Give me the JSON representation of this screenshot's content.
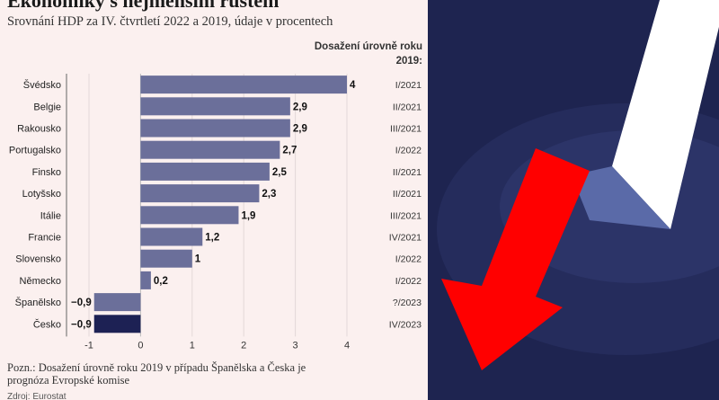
{
  "title": "Ekonomiky s nejmenším růstem",
  "subtitle": "Srovnání HDP za IV. čtvrtletí 2022 a 2019, údaje v procentech",
  "column_header": "Dosažení úrovně roku 2019:",
  "note": "Pozn.: Dosažení úrovně roku 2019 v případu Španělska a Česka je prognóza Evropské komise",
  "source": "Zdroj: Eurostat",
  "colors": {
    "bar": "#6b6f9a",
    "highlight": "#1d2154",
    "background": "#fbf0ef"
  },
  "chart_data": {
    "type": "bar",
    "orientation": "horizontal",
    "title": "Ekonomiky s nejmenším růstem",
    "subtitle": "Srovnání HDP za IV. čtvrtletí 2022 a 2019, údaje v procentech",
    "categories": [
      "Švédsko",
      "Belgie",
      "Rakousko",
      "Portugalsko",
      "Finsko",
      "Lotyšsko",
      "Itálie",
      "Francie",
      "Slovensko",
      "Německo",
      "Španělsko",
      "Česko"
    ],
    "values": [
      4,
      2.9,
      2.9,
      2.7,
      2.5,
      2.3,
      1.9,
      1.2,
      1,
      0.2,
      -0.9,
      -0.9
    ],
    "value_labels": [
      "4",
      "2,9",
      "2,9",
      "2,7",
      "2,5",
      "2,3",
      "1,9",
      "1,2",
      "1",
      "0,2",
      "−0,9",
      "−0,9"
    ],
    "reached_2019_level": [
      "I/2021",
      "II/2021",
      "III/2021",
      "I/2022",
      "II/2021",
      "II/2021",
      "III/2021",
      "IV/2021",
      "I/2022",
      "I/2022",
      "?/2023",
      "IV/2023"
    ],
    "highlighted": [
      "Česko"
    ],
    "xlim": [
      -1,
      4
    ],
    "xticks": [
      "-1",
      "0",
      "1",
      "2",
      "3",
      "4"
    ],
    "grid": true
  }
}
